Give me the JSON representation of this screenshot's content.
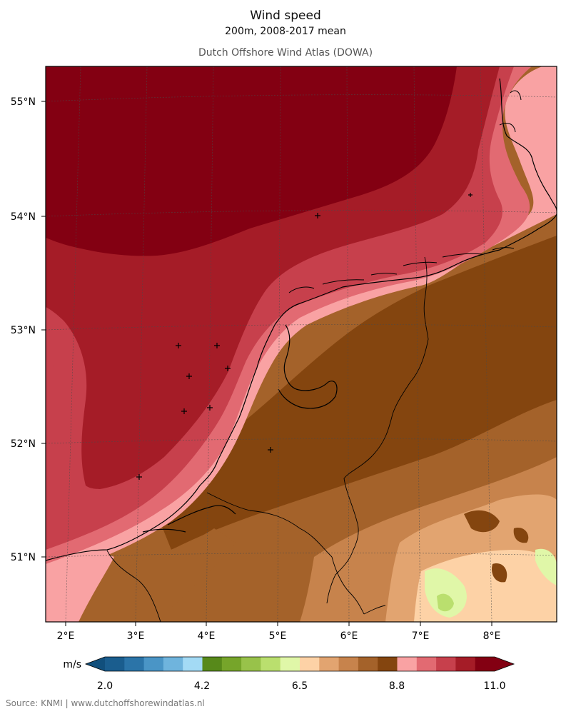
{
  "header": {
    "title": "Wind speed",
    "subtitle": "200m, 2008-2017 mean",
    "dataset": "Dutch Offshore Wind Atlas (DOWA)"
  },
  "map": {
    "lat_labels": [
      "55°N",
      "54°N",
      "53°N",
      "52°N",
      "51°N"
    ],
    "lon_labels": [
      "2°E",
      "3°E",
      "4°E",
      "5°E",
      "6°E",
      "7°E",
      "8°E"
    ]
  },
  "legend": {
    "unit": "m/s",
    "tick_labels": [
      "2.0",
      "4.2",
      "6.5",
      "8.8",
      "11.0"
    ],
    "colors": [
      "#1a5d8e",
      "#2b74a8",
      "#4a95c6",
      "#6fb4dd",
      "#a3daf5",
      "#57891a",
      "#76a52a",
      "#98c24a",
      "#badf6e",
      "#e0f7a8",
      "#fdd2a6",
      "#e2a470",
      "#c7834c",
      "#a4622a",
      "#84450f",
      "#f9a2a3",
      "#e26a72",
      "#c7404c",
      "#a51c27",
      "#830012"
    ]
  },
  "footer": {
    "credit": "Source: KNMI | www.dutchoffshorewindatlas.nl"
  }
}
